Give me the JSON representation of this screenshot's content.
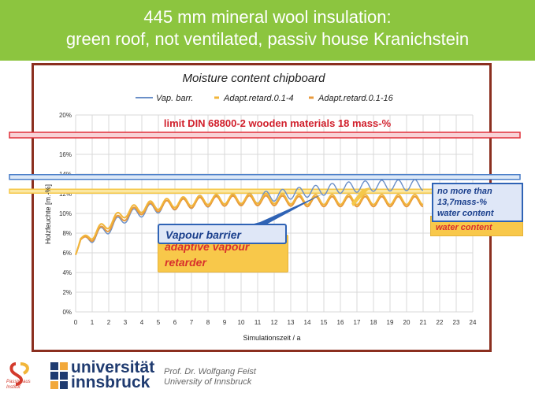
{
  "slide": {
    "title_line1": "445 mm mineral wool insulation:",
    "title_line2": "green roof, not ventilated, passiv house Kranichstein"
  },
  "chart_data": {
    "type": "line",
    "title": "Moisture content chipboard",
    "xlabel": "Simulationszeit / a",
    "ylabel": "Holzfeuchte [m.-%]",
    "xlim": [
      0,
      24
    ],
    "ylim": [
      0,
      20
    ],
    "x_ticks": [
      "0",
      "1",
      "2",
      "3",
      "4",
      "5",
      "6",
      "7",
      "8",
      "9",
      "10",
      "11",
      "12",
      "13",
      "14",
      "15",
      "16",
      "17",
      "18",
      "19",
      "20",
      "21",
      "22",
      "23",
      "24"
    ],
    "y_ticks": [
      "0%",
      "2%",
      "4%",
      "6%",
      "8%",
      "10%",
      "12%",
      "14%",
      "16%",
      "18%",
      "20%"
    ],
    "grid": true,
    "legend_position": "top",
    "series": [
      {
        "name": "Vap. barr.",
        "color": "#6a8fc8",
        "base": [
          [
            0,
            5.8
          ],
          [
            0.3,
            7.3
          ],
          [
            1,
            7.5
          ],
          [
            2,
            8.5
          ],
          [
            3,
            9.6
          ],
          [
            4,
            10.2
          ],
          [
            5,
            10.6
          ],
          [
            6,
            10.9
          ],
          [
            8,
            11.2
          ],
          [
            10,
            11.4
          ],
          [
            12,
            11.8
          ],
          [
            14,
            12.2
          ],
          [
            16,
            12.6
          ],
          [
            18,
            12.8
          ],
          [
            21,
            12.9
          ]
        ],
        "amplitude": 0.55
      },
      {
        "name": "Adapt.retard.0.1-4",
        "color": "#f2b63a",
        "base": [
          [
            0,
            5.8
          ],
          [
            0.3,
            7.4
          ],
          [
            1,
            7.8
          ],
          [
            2,
            9.0
          ],
          [
            3,
            10.1
          ],
          [
            4,
            10.6
          ],
          [
            5,
            10.9
          ],
          [
            6,
            11.1
          ],
          [
            8,
            11.4
          ],
          [
            10,
            11.5
          ],
          [
            12,
            11.5
          ],
          [
            14,
            11.4
          ],
          [
            16,
            11.4
          ],
          [
            18,
            11.4
          ],
          [
            21,
            11.4
          ]
        ],
        "amplitude": 0.5
      },
      {
        "name": "Adapt.retard.0.1-16",
        "color": "#e89a3c",
        "base": [
          [
            0,
            5.8
          ],
          [
            0.3,
            7.3
          ],
          [
            1,
            7.6
          ],
          [
            2,
            8.7
          ],
          [
            3,
            9.8
          ],
          [
            4,
            10.4
          ],
          [
            5,
            10.7
          ],
          [
            6,
            10.9
          ],
          [
            8,
            11.2
          ],
          [
            10,
            11.3
          ],
          [
            12,
            11.3
          ],
          [
            14,
            11.2
          ],
          [
            16,
            11.2
          ],
          [
            18,
            11.2
          ],
          [
            21,
            11.2
          ]
        ],
        "amplitude": 0.5
      }
    ],
    "limit_line": {
      "label": "limit DIN 68800-2  wooden materials 18 mass-%",
      "value": 18,
      "color": "#e0303a"
    },
    "max_line": {
      "value": 13.7,
      "color": "#4a7ec8"
    },
    "yellow_band": {
      "value": 12.3,
      "color": "#f5d35a"
    }
  },
  "callouts": {
    "vapour_barrier": "Vapour barrier",
    "adaptive_line1": "adaptive vapour",
    "adaptive_line2": "retarder",
    "blue_line1": "no more than",
    "blue_line2": "13,7mass-%",
    "blue_line3": "water content",
    "red_line": "water content"
  },
  "footer": {
    "logo_text1": "Passivhaus",
    "logo_text2": "Institut",
    "uni_line1": "universität",
    "uni_line2": "innsbruck",
    "author": "Prof. Dr. Wolfgang Feist",
    "affiliation": "University of Innsbruck"
  },
  "colors": {
    "header_bg": "#8cc53f",
    "frame_border": "#8b2f1f",
    "callout_blue_bg": "#dfe7f7",
    "callout_yellow_bg": "#f8c84a"
  }
}
